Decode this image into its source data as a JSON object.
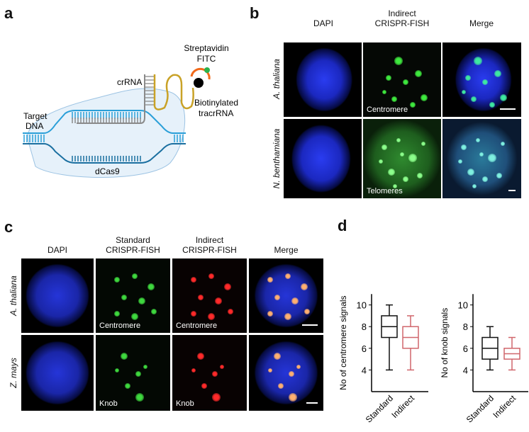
{
  "panels": {
    "a": {
      "label": "a",
      "streptavidin": "Streptavidin",
      "fitc": "FITC",
      "crrna": "crRNA",
      "biotinylated": "Biotinylated",
      "tracrrna": "tracrRNA",
      "target": "Target",
      "dna": "DNA",
      "dcas9": "dCas9",
      "colors": {
        "dna_light": "#2a9fd8",
        "dna_dark": "#1a6fa0",
        "crrna": "#8a8a8a",
        "tracrrna": "#c9a227",
        "streptavidin": "#f26a1b",
        "fitc": "#2bb24c",
        "dcas9": "#e6f1fa"
      }
    },
    "b": {
      "label": "b",
      "headers": [
        "DAPI",
        "Indirect\nCRISPR-FISH",
        "Merge"
      ],
      "header_line1": "Indirect",
      "header_line2": "CRISPR-FISH",
      "rows": [
        "A. thaliana",
        "N. benthamiana"
      ],
      "captions": [
        "Centromere",
        "Telomeres"
      ]
    },
    "c": {
      "label": "c",
      "headers": {
        "dapi": "DAPI",
        "standard_1": "Standard",
        "standard_2": "CRISPR-FISH",
        "indirect_1": "Indirect",
        "indirect_2": "CRISPR-FISH",
        "merge": "Merge"
      },
      "rows": [
        "A. thaliana",
        "Z. mays"
      ],
      "captions": {
        "row1_standard": "Centromere",
        "row1_indirect": "Centromere",
        "row2_standard": "Knob",
        "row2_indirect": "Knob"
      }
    },
    "d": {
      "label": "d"
    }
  },
  "chart_data": [
    {
      "type": "box",
      "ylabel": "No of centromere signals",
      "categories": [
        "Standard",
        "Indirect"
      ],
      "yticks": [
        4,
        6,
        8,
        10
      ],
      "ylim": [
        2,
        11
      ],
      "series": [
        {
          "category": "Standard",
          "min": 4,
          "q1": 7,
          "median": 8,
          "q3": 9,
          "max": 10,
          "color": "#111111"
        },
        {
          "category": "Indirect",
          "min": 4,
          "q1": 6,
          "median": 7,
          "q3": 8,
          "max": 9,
          "color": "#d0666c"
        }
      ]
    },
    {
      "type": "box",
      "ylabel": "No of knob signals",
      "categories": [
        "Standard",
        "Indirect"
      ],
      "yticks": [
        4,
        6,
        8,
        10
      ],
      "ylim": [
        2,
        11
      ],
      "series": [
        {
          "category": "Standard",
          "min": 4,
          "q1": 5,
          "median": 6,
          "q3": 7,
          "max": 8,
          "color": "#111111"
        },
        {
          "category": "Indirect",
          "min": 4,
          "q1": 5,
          "median": 5.5,
          "q3": 6,
          "max": 7,
          "color": "#d0666c"
        }
      ]
    }
  ]
}
